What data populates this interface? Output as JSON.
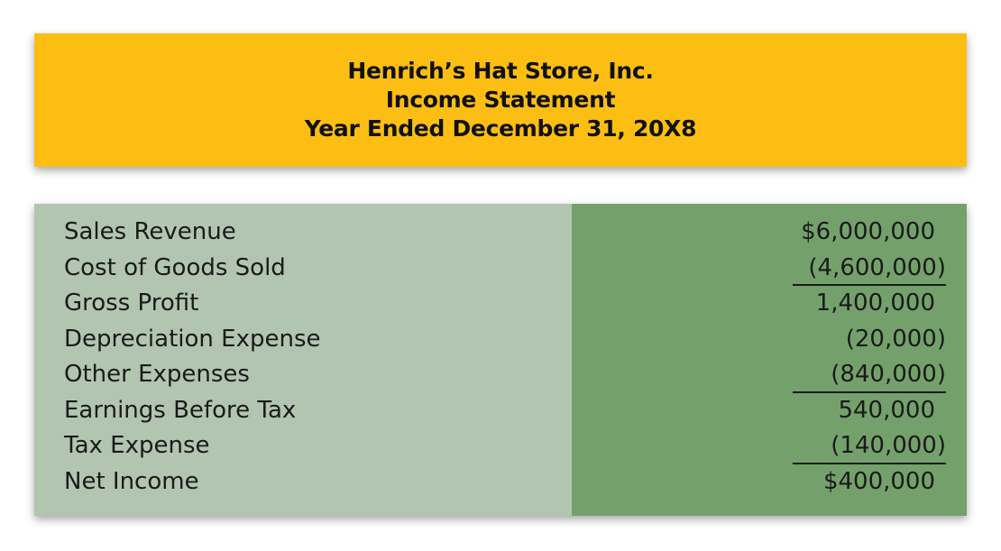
{
  "header": {
    "company": "Henrich’s Hat Store, Inc.",
    "statement": "Income Statement",
    "period": "Year Ended December 31, 20X8"
  },
  "colors": {
    "header_bg": "#fdbe14",
    "label_bg": "#b2c5b0",
    "value_bg": "#74a16b"
  },
  "rows": [
    {
      "label": "Sales Revenue",
      "value": "$6,000,000"
    },
    {
      "label": "Cost of Goods Sold",
      "value": "(4,600,000)"
    },
    {
      "label": "Gross Profit",
      "value": "1,400,000"
    },
    {
      "label": "Depreciation Expense",
      "value": "(20,000)"
    },
    {
      "label": "Other Expenses",
      "value": "(840,000)"
    },
    {
      "label": "Earnings Before Tax",
      "value": "540,000"
    },
    {
      "label": "Tax Expense",
      "value": "(140,000)"
    },
    {
      "label": "Net Income",
      "value": "$400,000"
    }
  ]
}
